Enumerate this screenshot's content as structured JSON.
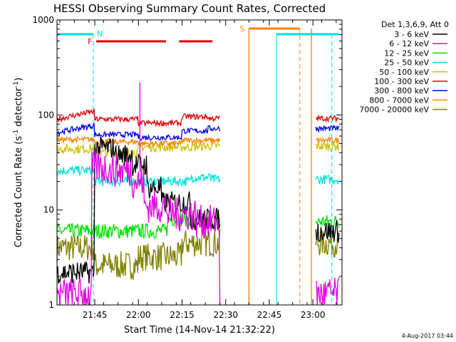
{
  "chart_data": {
    "type": "line",
    "title": "HESSI Observing Summary Count Rates, Corrected",
    "xlabel": "Start Time (14-Nov-14 21:32:22)",
    "ylabel_main": "Corrected Count Rate (s",
    "ylabel_sup1": "-1",
    "ylabel_mid": " detector",
    "ylabel_sup2": "-1",
    "ylabel_end": ")",
    "yscale": "log",
    "ylim": [
      1,
      1000
    ],
    "xlim_min": [
      1292,
      1390
    ],
    "x_ticks": [
      {
        "value": 1305,
        "label": "21:45"
      },
      {
        "value": 1320,
        "label": "22:00"
      },
      {
        "value": 1335,
        "label": "22:15"
      },
      {
        "value": 1350,
        "label": "22:30"
      },
      {
        "value": 1365,
        "label": "22:45"
      },
      {
        "value": 1380,
        "label": "23:00"
      }
    ],
    "y_ticks": [
      {
        "value": 1,
        "label": "1"
      },
      {
        "value": 10,
        "label": "10"
      },
      {
        "value": 100,
        "label": "100"
      },
      {
        "value": 1000,
        "label": "1000"
      }
    ],
    "legend_title": "Det 1,3,6,9, Att 0",
    "legend_position": "right",
    "series": [
      {
        "name": "3 - 6 keV",
        "color": "#000000"
      },
      {
        "name": "6 - 12 keV",
        "color": "#e000e0"
      },
      {
        "name": "12 - 25 keV",
        "color": "#00e000"
      },
      {
        "name": "25 - 50 keV",
        "color": "#00e0e0"
      },
      {
        "name": "50 - 100 keV",
        "color": "#d0c000"
      },
      {
        "name": "100 - 300 keV",
        "color": "#e00000"
      },
      {
        "name": "300 - 800 keV",
        "color": "#0000e0"
      },
      {
        "name": "800 - 7000 keV",
        "color": "#ff8000"
      },
      {
        "name": "7000 - 20000 keV",
        "color": "#808000"
      }
    ],
    "flags": [
      {
        "label": "N",
        "color": "#00e0e0"
      },
      {
        "label": "F",
        "color": "#e00000"
      },
      {
        "label": "S",
        "color": "#ff8000"
      }
    ],
    "timestamp": "4-Aug-2017 03:44"
  }
}
